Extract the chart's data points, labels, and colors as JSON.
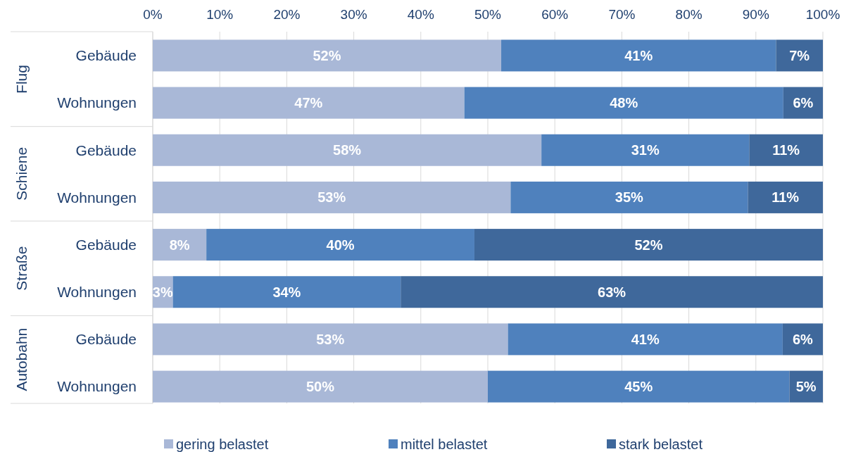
{
  "chart_data": {
    "type": "bar",
    "orientation": "horizontal",
    "stacked": true,
    "categories": [
      "Gebäude",
      "Wohnungen",
      "Gebäude",
      "Wohnungen",
      "Gebäude",
      "Wohnungen",
      "Gebäude",
      "Wohnungen"
    ],
    "annotations": [
      "Flug",
      "Schiene",
      "Straße",
      "Autobahn"
    ],
    "series": [
      {
        "name": "gering belastet",
        "color": "#a9b8d7",
        "values": [
          52,
          46.5,
          58,
          53.4,
          8,
          3,
          53,
          50
        ],
        "value_labels": [
          "52%",
          "47%",
          "58%",
          "53%",
          "8%",
          "3%",
          "53%",
          "50%"
        ]
      },
      {
        "name": "mittel belastet",
        "color": "#4f81bd",
        "values": [
          41,
          47.6,
          31,
          35.4,
          40,
          34,
          41,
          45
        ],
        "value_labels": [
          "41%",
          "48%",
          "31%",
          "35%",
          "40%",
          "34%",
          "41%",
          "45%"
        ]
      },
      {
        "name": "stark belastet",
        "color": "#3f689b",
        "values": [
          7,
          5.9,
          11,
          11.2,
          52,
          63,
          6,
          5
        ],
        "value_labels": [
          "7%",
          "6%",
          "11%",
          "11%",
          "52%",
          "63%",
          "6%",
          "5%"
        ]
      }
    ],
    "xlim": [
      0,
      100
    ],
    "xticks": [
      {
        "value": 0,
        "label": "0%"
      },
      {
        "value": 10,
        "label": "10%"
      },
      {
        "value": 20,
        "label": "20%"
      },
      {
        "value": 30,
        "label": "30%"
      },
      {
        "value": 40,
        "label": "40%"
      },
      {
        "value": 50,
        "label": "50%"
      },
      {
        "value": 60,
        "label": "60%"
      },
      {
        "value": 70,
        "label": "70%"
      },
      {
        "value": 80,
        "label": "80%"
      },
      {
        "value": 90,
        "label": "90%"
      },
      {
        "value": 100,
        "label": "100%"
      }
    ],
    "grid": "x",
    "legend": "bottom"
  }
}
